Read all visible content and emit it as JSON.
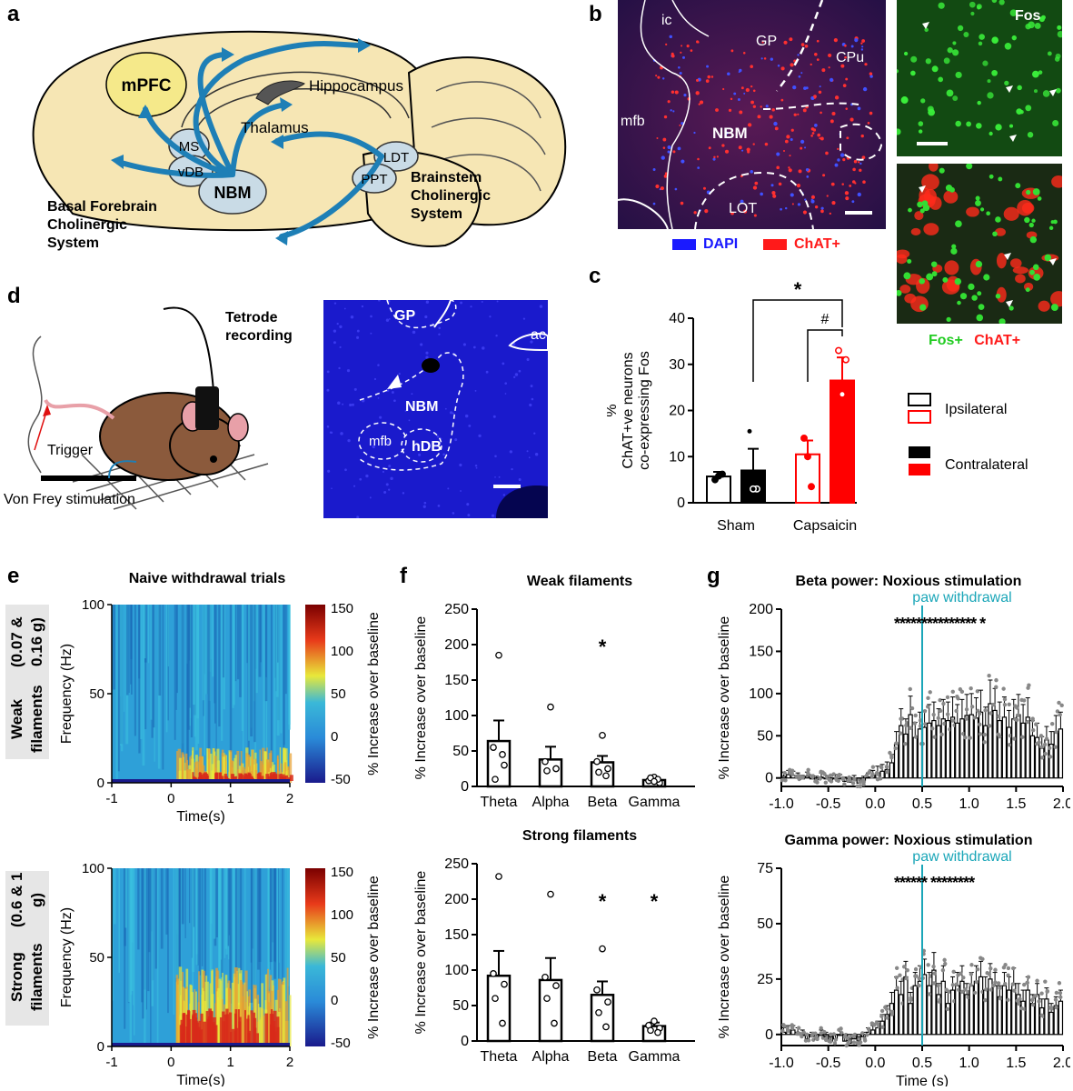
{
  "panels": {
    "a": {
      "letter": "a",
      "regions": {
        "mpfc": "mPFC",
        "hippocampus": "Hippocampus",
        "thalamus": "Thalamus",
        "ms": "MS",
        "vdb": "vDB",
        "nbm": "NBM",
        "ldt": "LDT",
        "ppt": "PPT"
      },
      "basal_label": [
        "Basal Forebrain",
        "Cholinergic",
        "System"
      ],
      "brainstem_label": [
        "Brainstem",
        "Cholinergic",
        "System"
      ]
    },
    "b": {
      "letter": "b",
      "regions": {
        "ic": "ic",
        "gp": "GP",
        "cpu": "CPu",
        "mfb": "mfb",
        "nbm": "NBM",
        "lot": "LOT"
      },
      "fos_label": "Fos",
      "legend_dapi": "DAPI",
      "legend_chat": "ChAT+",
      "merge_fos": "Fos+",
      "merge_chat": "ChAT+",
      "colors": {
        "dapi": "#1a1aff",
        "chat": "#ff1a1a",
        "fos": "#22cc22"
      }
    },
    "c": {
      "letter": "c"
    },
    "d": {
      "letter": "d",
      "tetrode": [
        "Tetrode",
        "recording"
      ],
      "trigger": "Trigger",
      "vonfrey": "Von Frey stimulation",
      "regions": {
        "gp": "GP",
        "ac": "ac",
        "nbm": "NBM",
        "mfb": "mfb",
        "hdb": "hDB"
      }
    },
    "e": {
      "letter": "e",
      "title": "Naive withdrawal trials",
      "row_weak": [
        "Weak filaments",
        "(0.07 & 0.16 g)"
      ],
      "row_strong": [
        "Strong filaments",
        "(0.6 & 1 g)"
      ],
      "ylabel": "Frequency (Hz)",
      "xlabel_top": "Time(s)",
      "xlabel_bottom": "Time(s)",
      "cbar_label": "% Increase over baseline",
      "cbar_ticks": [
        "150",
        "100",
        "50",
        "0",
        "-50"
      ],
      "yticks": [
        "100",
        "50",
        "0"
      ],
      "xticks": [
        "-1",
        "0",
        "1",
        "2"
      ]
    },
    "f": {
      "letter": "f"
    },
    "g": {
      "letter": "g",
      "annotation": "paw withdrawal"
    }
  },
  "chart_data": [
    {
      "id": "c",
      "type": "bar",
      "ylabel": "% ChAT+ve neurons co-expressing Fos",
      "categories": [
        "Sham",
        "Capsaicin"
      ],
      "ylim": [
        0,
        40
      ],
      "yticks": [
        "0",
        "10",
        "20",
        "30",
        "40"
      ],
      "series": [
        {
          "name": "Ipsilateral",
          "values": [
            5.7,
            10.5
          ],
          "errors": [
            1.0,
            3.0
          ]
        },
        {
          "name": "Contralateral",
          "values": [
            7.0,
            26.5
          ],
          "errors": [
            4.7,
            5.0
          ]
        }
      ],
      "points": {
        "sham_ipsi": [
          5,
          6.2,
          5.8
        ],
        "sham_contra": [
          15.5,
          3,
          3
        ],
        "caps_ipsi": [
          14,
          3.5,
          10
        ],
        "caps_contra": [
          33,
          31,
          23.5
        ]
      },
      "legend": [
        "Ipsilateral",
        "Contralateral"
      ],
      "sig_star": "*",
      "sig_hash": "#",
      "colors": {
        "sham": "#000000",
        "capsaicin": "#ff0000"
      }
    },
    {
      "id": "f-weak",
      "type": "bar",
      "title": "Weak filaments",
      "ylabel": "% Increase over baseline",
      "categories": [
        "Theta",
        "Alpha",
        "Beta",
        "Gamma"
      ],
      "values": [
        64,
        38,
        34,
        9
      ],
      "errors": [
        29,
        18,
        9,
        3
      ],
      "points": [
        [
          185,
          55,
          30,
          10,
          45
        ],
        [
          112,
          35,
          25,
          22
        ],
        [
          72,
          35,
          25,
          20,
          15
        ],
        [
          13,
          8,
          5,
          12,
          10,
          7
        ]
      ],
      "ylim": [
        0,
        250
      ],
      "yticks": [
        "0",
        "50",
        "100",
        "150",
        "200",
        "250"
      ],
      "stars": [
        "",
        "",
        "*",
        ""
      ]
    },
    {
      "id": "f-strong",
      "type": "bar",
      "title": "Strong filaments",
      "ylabel": "% Increase over baseline",
      "categories": [
        "Theta",
        "Alpha",
        "Beta",
        "Gamma"
      ],
      "values": [
        92,
        86,
        65,
        21
      ],
      "errors": [
        35,
        31,
        19,
        5
      ],
      "points": [
        [
          232,
          95,
          80,
          60,
          25
        ],
        [
          207,
          90,
          78,
          60,
          25
        ],
        [
          130,
          72,
          55,
          40,
          20
        ],
        [
          28,
          22,
          18,
          15,
          12
        ]
      ],
      "ylim": [
        0,
        250
      ],
      "yticks": [
        "0",
        "50",
        "100",
        "150",
        "200",
        "250"
      ],
      "stars": [
        "",
        "",
        "*",
        "*"
      ]
    },
    {
      "id": "g-beta",
      "type": "bar",
      "title": "Beta power: Noxious stimulation",
      "ylabel": "% Increase over baseline",
      "xlabel": "",
      "xlim": [
        -1.0,
        2.0
      ],
      "ylim": [
        -10,
        200
      ],
      "yticks": [
        "0",
        "50",
        "100",
        "150",
        "200"
      ],
      "xticks": [
        "-1.0",
        "-0.5",
        "0.0",
        "0.5",
        "1.0",
        "1.5",
        "2.0"
      ],
      "x": [
        -0.975,
        -0.925,
        -0.875,
        -0.825,
        -0.775,
        -0.725,
        -0.675,
        -0.625,
        -0.575,
        -0.525,
        -0.475,
        -0.425,
        -0.375,
        -0.325,
        -0.275,
        -0.225,
        -0.175,
        -0.125,
        -0.075,
        -0.025,
        0.025,
        0.075,
        0.125,
        0.175,
        0.225,
        0.275,
        0.325,
        0.375,
        0.425,
        0.475,
        0.525,
        0.575,
        0.625,
        0.675,
        0.725,
        0.775,
        0.825,
        0.875,
        0.925,
        0.975,
        1.025,
        1.075,
        1.125,
        1.175,
        1.225,
        1.275,
        1.325,
        1.375,
        1.425,
        1.475,
        1.525,
        1.575,
        1.625,
        1.675,
        1.725,
        1.775,
        1.825,
        1.875,
        1.925,
        1.975
      ],
      "values": [
        2,
        4,
        3,
        1,
        -1,
        2,
        0,
        -2,
        1,
        -1,
        -3,
        -1,
        0,
        -4,
        -5,
        -2,
        -6,
        -3,
        1,
        3,
        6,
        8,
        10,
        18,
        40,
        62,
        52,
        75,
        48,
        58,
        60,
        65,
        68,
        62,
        70,
        68,
        72,
        65,
        70,
        74,
        75,
        71,
        78,
        62,
        88,
        80,
        68,
        72,
        60,
        70,
        75,
        65,
        72,
        50,
        48,
        35,
        45,
        40,
        55,
        58
      ],
      "errors": [
        5,
        5,
        5,
        5,
        4,
        5,
        4,
        4,
        5,
        4,
        5,
        5,
        4,
        5,
        6,
        5,
        6,
        5,
        5,
        6,
        8,
        8,
        9,
        10,
        15,
        20,
        18,
        22,
        18,
        20,
        20,
        22,
        22,
        20,
        23,
        22,
        24,
        22,
        23,
        25,
        25,
        24,
        26,
        22,
        28,
        26,
        22,
        24,
        20,
        23,
        24,
        22,
        23,
        18,
        17,
        14,
        16,
        15,
        19,
        20
      ],
      "stars": "*************** *",
      "paw_withdrawal_x": 0.5
    },
    {
      "id": "g-gamma",
      "type": "bar",
      "title": "Gamma power: Noxious stimulation",
      "ylabel": "% Increase over baseline",
      "xlabel": "Time (s)",
      "xlim": [
        -1.0,
        2.0
      ],
      "ylim": [
        -5,
        75
      ],
      "yticks": [
        "0",
        "25",
        "50",
        "75"
      ],
      "xticks": [
        "-1.0",
        "-0.5",
        "0.0",
        "0.5",
        "1.0",
        "1.5",
        "2.0"
      ],
      "x": [
        -0.975,
        -0.925,
        -0.875,
        -0.825,
        -0.775,
        -0.725,
        -0.675,
        -0.625,
        -0.575,
        -0.525,
        -0.475,
        -0.425,
        -0.375,
        -0.325,
        -0.275,
        -0.225,
        -0.175,
        -0.125,
        -0.075,
        -0.025,
        0.025,
        0.075,
        0.125,
        0.175,
        0.225,
        0.275,
        0.325,
        0.375,
        0.425,
        0.475,
        0.525,
        0.575,
        0.625,
        0.675,
        0.725,
        0.775,
        0.825,
        0.875,
        0.925,
        0.975,
        1.025,
        1.075,
        1.125,
        1.175,
        1.225,
        1.275,
        1.325,
        1.375,
        1.425,
        1.475,
        1.525,
        1.575,
        1.625,
        1.675,
        1.725,
        1.775,
        1.825,
        1.875,
        1.925,
        1.975
      ],
      "values": [
        1,
        2,
        2,
        1,
        0,
        -2,
        -1,
        -2,
        0,
        -1,
        -3,
        -2,
        0,
        -3,
        -4,
        -2,
        -3,
        -1,
        1,
        2,
        3,
        6,
        9,
        14,
        20,
        18,
        26,
        14,
        22,
        24,
        27,
        22,
        29,
        18,
        24,
        14,
        20,
        22,
        24,
        18,
        22,
        24,
        26,
        20,
        25,
        22,
        17,
        22,
        20,
        23,
        18,
        15,
        20,
        14,
        18,
        12,
        16,
        10,
        13,
        15
      ],
      "errors": [
        2,
        2,
        2,
        2,
        2,
        2,
        2,
        2,
        2,
        2,
        2,
        2,
        2,
        2,
        2,
        2,
        2,
        2,
        2,
        2,
        3,
        3,
        4,
        5,
        6,
        6,
        7,
        5,
        6,
        7,
        7,
        6,
        8,
        5,
        7,
        5,
        6,
        6,
        7,
        5,
        6,
        7,
        7,
        6,
        7,
        6,
        5,
        6,
        6,
        7,
        5,
        5,
        6,
        4,
        5,
        4,
        5,
        4,
        4,
        5
      ],
      "stars": "****** ********",
      "paw_withdrawal_x": 0.5
    }
  ]
}
